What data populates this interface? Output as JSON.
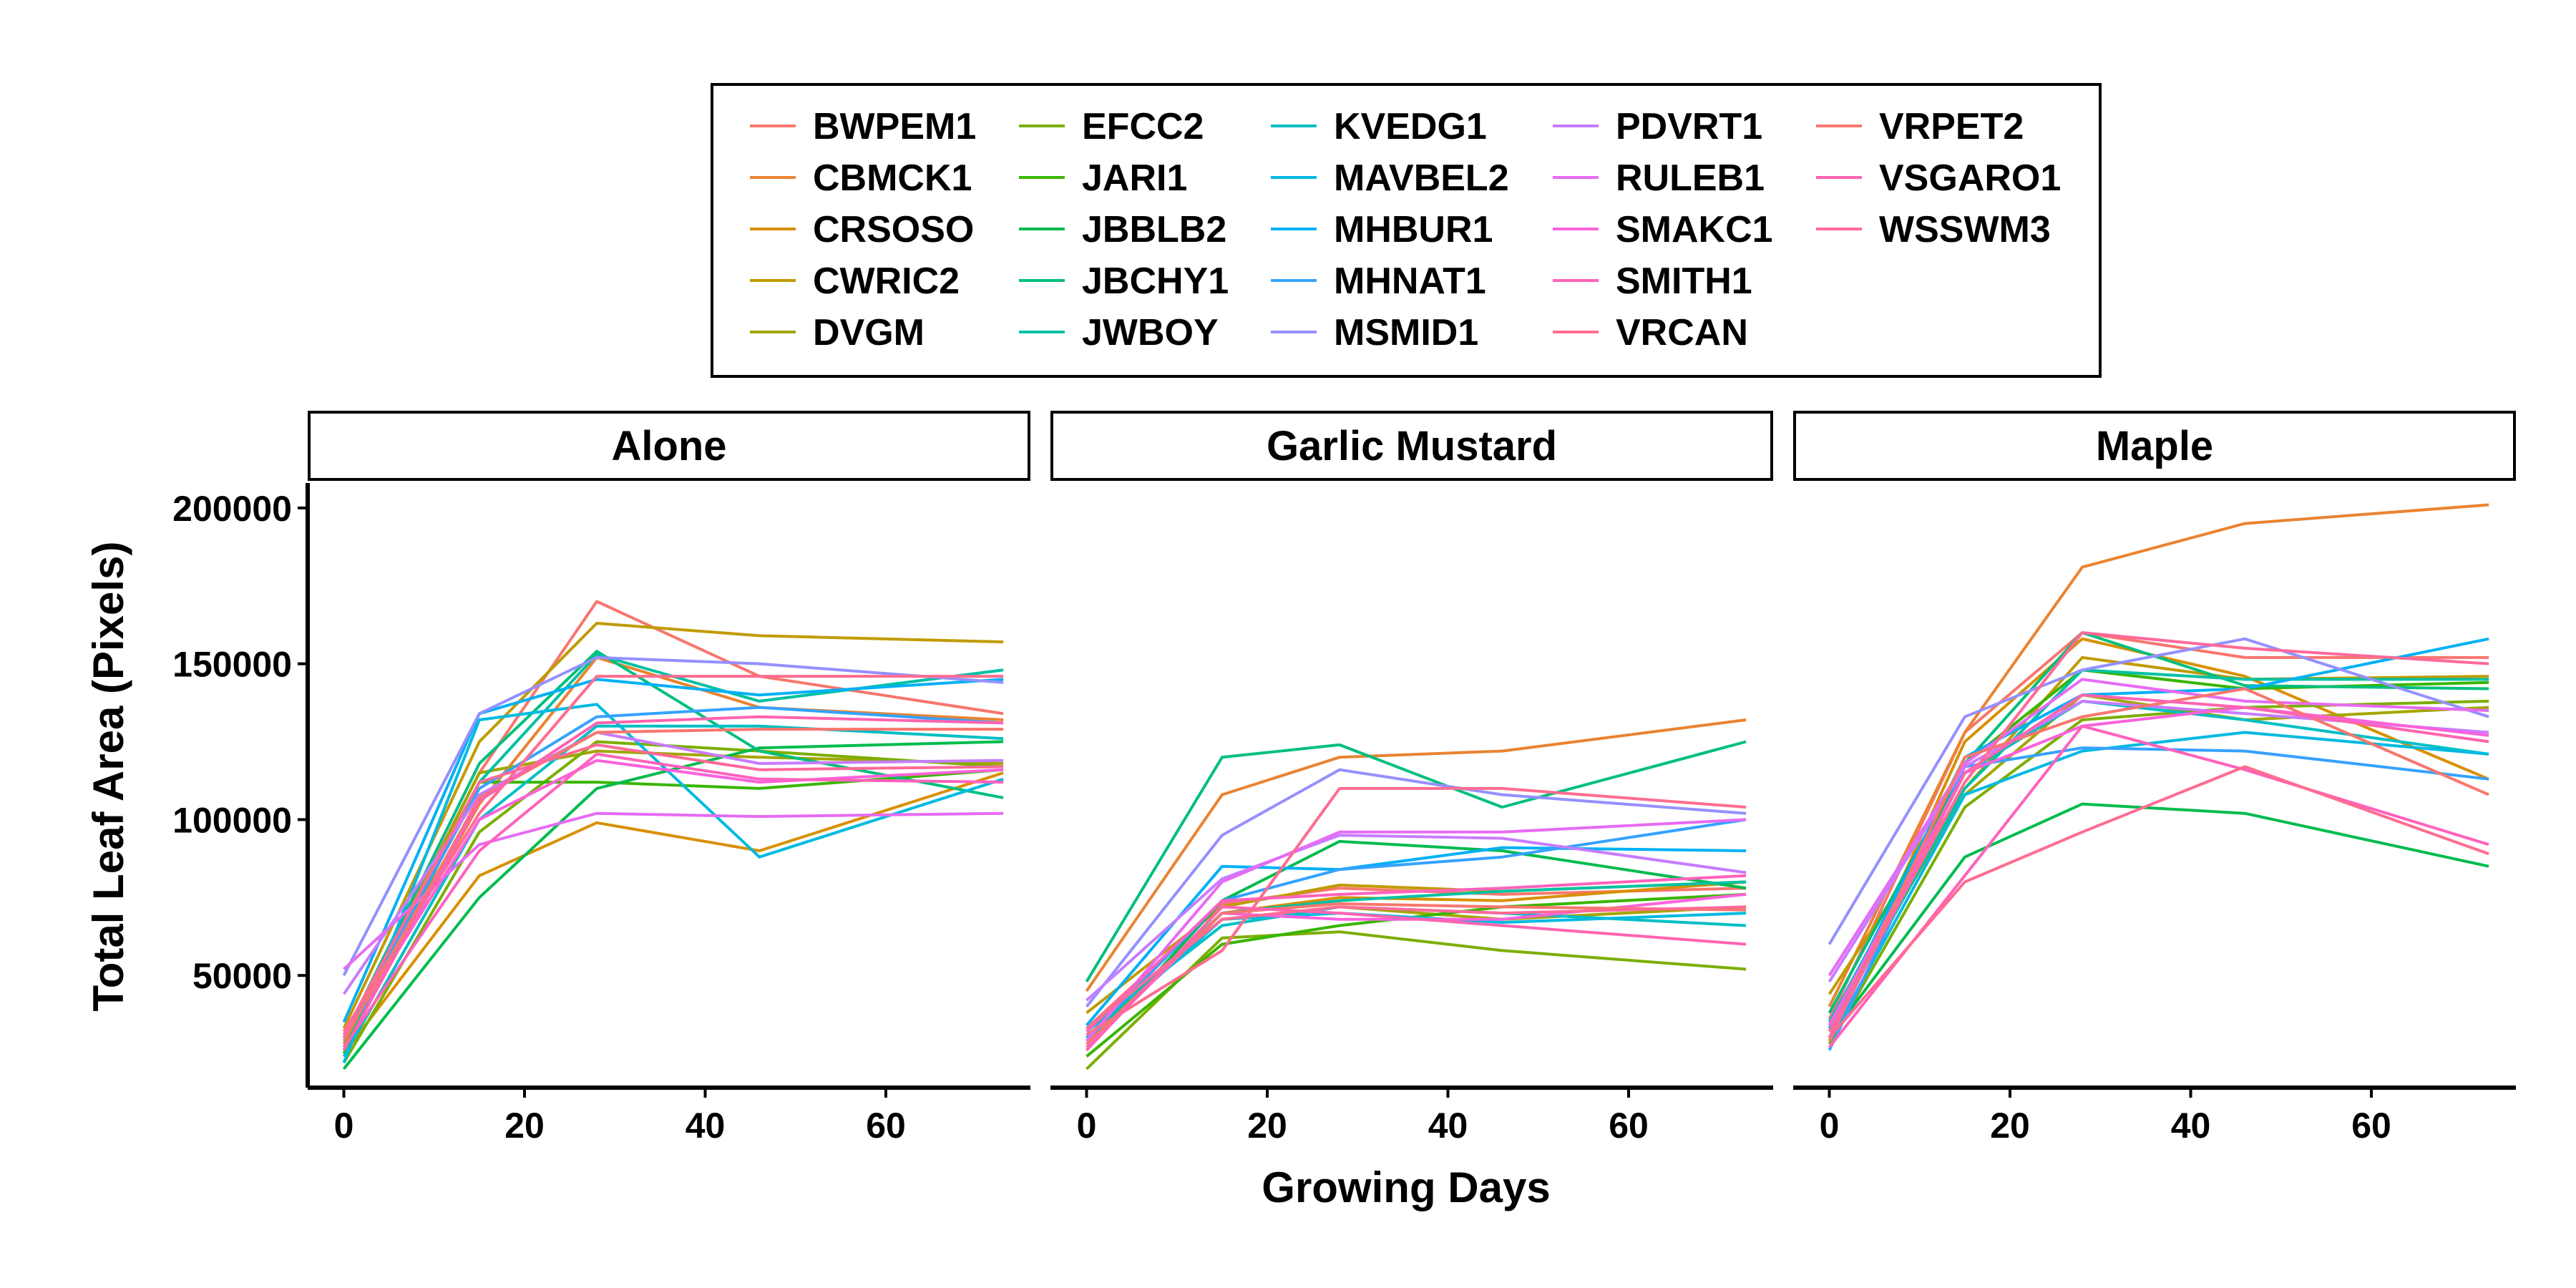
{
  "chart_data": {
    "type": "line",
    "xlabel": "Growing Days",
    "ylabel": "Total Leaf Area (Pixels)",
    "xlim": [
      -4,
      76
    ],
    "ylim": [
      14000,
      208000
    ],
    "x_ticks": [
      0,
      20,
      40,
      60
    ],
    "y_ticks": [
      50000,
      100000,
      150000,
      200000
    ],
    "grid": false,
    "legend_placement": "top",
    "x": [
      0,
      15,
      28,
      46,
      73
    ],
    "panels": [
      "Alone",
      "Garlic Mustard",
      "Maple"
    ],
    "series": [
      {
        "name": "BWPEM1",
        "color": "#F8766D",
        "values": {
          "Alone": [
            30000,
            115000,
            170000,
            146000,
            134000
          ],
          "Garlic Mustard": [
            33000,
            73000,
            78000,
            76000,
            78000
          ],
          "Maple": [
            36000,
            128000,
            160000,
            152000,
            152000
          ]
        }
      },
      {
        "name": "CBMCK1",
        "color": "#EA8331",
        "values": {
          "Alone": [
            27000,
            105000,
            152000,
            136000,
            132000
          ],
          "Garlic Mustard": [
            45000,
            108000,
            120000,
            122000,
            132000
          ],
          "Maple": [
            40000,
            128000,
            181000,
            195000,
            201000
          ]
        }
      },
      {
        "name": "CRSOSO",
        "color": "#D89000",
        "values": {
          "Alone": [
            25000,
            82000,
            99000,
            90000,
            115000
          ],
          "Garlic Mustard": [
            27000,
            70000,
            75000,
            74000,
            80000
          ],
          "Maple": [
            30000,
            125000,
            158000,
            146000,
            113000
          ]
        }
      },
      {
        "name": "CWRIC2",
        "color": "#C09B00",
        "values": {
          "Alone": [
            33000,
            125000,
            163000,
            159000,
            157000
          ],
          "Garlic Mustard": [
            38000,
            72000,
            79000,
            77000,
            80000
          ],
          "Maple": [
            44000,
            110000,
            152000,
            145000,
            146000
          ]
        }
      },
      {
        "name": "DVGM",
        "color": "#A3A500",
        "values": {
          "Alone": [
            28000,
            115000,
            122000,
            120000,
            118000
          ],
          "Garlic Mustard": [
            30000,
            68000,
            72000,
            68000,
            72000
          ],
          "Maple": [
            35000,
            108000,
            140000,
            132000,
            136000
          ]
        }
      },
      {
        "name": "EFCC2",
        "color": "#7CAE00",
        "values": {
          "Alone": [
            22000,
            96000,
            125000,
            122000,
            117000
          ],
          "Garlic Mustard": [
            20000,
            62000,
            64000,
            58000,
            52000
          ],
          "Maple": [
            28000,
            104000,
            132000,
            136000,
            138000
          ]
        }
      },
      {
        "name": "JARI1",
        "color": "#39B600",
        "values": {
          "Alone": [
            25000,
            112000,
            112000,
            110000,
            116000
          ],
          "Garlic Mustard": [
            24000,
            60000,
            66000,
            72000,
            76000
          ],
          "Maple": [
            30000,
            118000,
            148000,
            142000,
            144000
          ]
        }
      },
      {
        "name": "JBBLB2",
        "color": "#00BB4E",
        "values": {
          "Alone": [
            20000,
            75000,
            110000,
            123000,
            125000
          ],
          "Garlic Mustard": [
            26000,
            74000,
            93000,
            90000,
            78000
          ],
          "Maple": [
            30000,
            88000,
            105000,
            102000,
            85000
          ]
        }
      },
      {
        "name": "JBCHY1",
        "color": "#00BF7D",
        "values": {
          "Alone": [
            30000,
            118000,
            154000,
            122000,
            107000
          ],
          "Garlic Mustard": [
            48000,
            120000,
            124000,
            104000,
            125000
          ],
          "Maple": [
            38000,
            118000,
            160000,
            143000,
            142000
          ]
        }
      },
      {
        "name": "JWBOY",
        "color": "#00C1A3",
        "values": {
          "Alone": [
            26000,
            112000,
            153000,
            138000,
            148000
          ],
          "Garlic Mustard": [
            30000,
            70000,
            74000,
            77000,
            80000
          ],
          "Maple": [
            32000,
            110000,
            148000,
            145000,
            145000
          ]
        }
      },
      {
        "name": "KVEDG1",
        "color": "#00BFC4",
        "values": {
          "Alone": [
            24000,
            100000,
            130000,
            130000,
            126000
          ],
          "Garlic Mustard": [
            32000,
            66000,
            72000,
            70000,
            66000
          ],
          "Maple": [
            35000,
            115000,
            138000,
            132000,
            121000
          ]
        }
      },
      {
        "name": "MAVBEL2",
        "color": "#00BAE0",
        "values": {
          "Alone": [
            22000,
            132000,
            137000,
            88000,
            113000
          ],
          "Garlic Mustard": [
            29000,
            68000,
            70000,
            67000,
            70000
          ],
          "Maple": [
            29000,
            108000,
            122000,
            128000,
            121000
          ]
        }
      },
      {
        "name": "MHBUR1",
        "color": "#00B0F6",
        "values": {
          "Alone": [
            35000,
            134000,
            145000,
            140000,
            145000
          ],
          "Garlic Mustard": [
            34000,
            85000,
            84000,
            91000,
            90000
          ],
          "Maple": [
            33000,
            120000,
            140000,
            142000,
            158000
          ]
        }
      },
      {
        "name": "MHNAT1",
        "color": "#35A2FF",
        "values": {
          "Alone": [
            30000,
            110000,
            133000,
            136000,
            131000
          ],
          "Garlic Mustard": [
            30000,
            74000,
            84000,
            88000,
            100000
          ],
          "Maple": [
            26000,
            117000,
            123000,
            122000,
            113000
          ]
        }
      },
      {
        "name": "MSMID1",
        "color": "#9590FF",
        "values": {
          "Alone": [
            50000,
            134000,
            152000,
            150000,
            144000
          ],
          "Garlic Mustard": [
            40000,
            95000,
            116000,
            108000,
            102000
          ],
          "Maple": [
            60000,
            133000,
            148000,
            158000,
            133000
          ]
        }
      },
      {
        "name": "PDVRT1",
        "color": "#C77CFF",
        "values": {
          "Alone": [
            44000,
            108000,
            128000,
            118000,
            119000
          ],
          "Garlic Mustard": [
            42000,
            81000,
            95000,
            94000,
            83000
          ],
          "Maple": [
            48000,
            117000,
            138000,
            134000,
            128000
          ]
        }
      },
      {
        "name": "RULEB1",
        "color": "#E76BF3",
        "values": {
          "Alone": [
            52000,
            92000,
            102000,
            101000,
            102000
          ],
          "Garlic Mustard": [
            29000,
            80000,
            96000,
            96000,
            100000
          ],
          "Maple": [
            50000,
            118000,
            145000,
            138000,
            135000
          ]
        }
      },
      {
        "name": "SMAKC1",
        "color": "#FA62DB",
        "values": {
          "Alone": [
            30000,
            100000,
            119000,
            112000,
            116000
          ],
          "Garlic Mustard": [
            27000,
            70000,
            68000,
            68000,
            76000
          ],
          "Maple": [
            34000,
            115000,
            130000,
            136000,
            127000
          ]
        }
      },
      {
        "name": "SMITH1",
        "color": "#FF62BC",
        "values": {
          "Alone": [
            27000,
            90000,
            121000,
            113000,
            112000
          ],
          "Garlic Mustard": [
            32000,
            74000,
            76000,
            78000,
            82000
          ],
          "Maple": [
            27000,
            82000,
            130000,
            116000,
            92000
          ]
        }
      },
      {
        "name": "VRCAN",
        "color": "#FF6C90",
        "values": {
          "Alone": [
            32000,
            102000,
            146000,
            146000,
            146000
          ],
          "Garlic Mustard": [
            31000,
            58000,
            110000,
            110000,
            104000
          ],
          "Maple": [
            30000,
            80000,
            96000,
            117000,
            89000
          ]
        }
      },
      {
        "name": "VRPET2",
        "color": "#F8766D",
        "values": {
          "Alone": [
            29000,
            107000,
            128000,
            129000,
            129000
          ],
          "Garlic Mustard": [
            28000,
            70000,
            73000,
            72000,
            71000
          ],
          "Maple": [
            29000,
            120000,
            133000,
            142000,
            108000
          ]
        }
      },
      {
        "name": "VSGARO1",
        "color": "#FF64B0",
        "values": {
          "Alone": [
            26000,
            106000,
            131000,
            133000,
            131000
          ],
          "Garlic Mustard": [
            26000,
            72000,
            70000,
            66000,
            60000
          ],
          "Maple": [
            30000,
            115000,
            140000,
            136000,
            125000
          ]
        }
      },
      {
        "name": "WSSWM3",
        "color": "#FF6A98",
        "values": {
          "Alone": [
            31000,
            112000,
            124000,
            116000,
            117000
          ],
          "Garlic Mustard": [
            33000,
            68000,
            72000,
            70000,
            72000
          ],
          "Maple": [
            32000,
            112000,
            160000,
            155000,
            150000
          ]
        }
      }
    ]
  }
}
